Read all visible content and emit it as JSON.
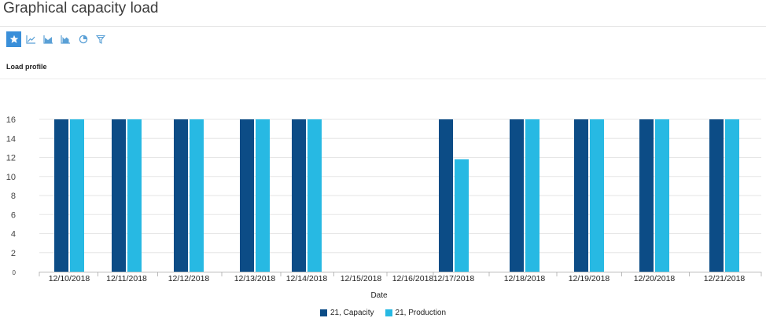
{
  "title": "Graphical capacity load",
  "toolbar": {
    "buttons": [
      {
        "icon": "star-icon",
        "active": true
      },
      {
        "icon": "line-chart-icon",
        "active": false
      },
      {
        "icon": "area-chart-icon",
        "active": false
      },
      {
        "icon": "column-chart-icon",
        "active": false
      },
      {
        "icon": "pie-chart-icon",
        "active": false
      },
      {
        "icon": "funnel-chart-icon",
        "active": false
      }
    ]
  },
  "subtitle": "Load profile",
  "colors": {
    "capacity": "#0c4c86",
    "production": "#27b9e3",
    "grid": "#e6e6e6",
    "axis": "#bbbbbb",
    "accent": "#3a8fd9"
  },
  "chart_data": {
    "type": "bar",
    "xlabel": "Date",
    "ylabel": "",
    "ylim": [
      0,
      16
    ],
    "yticks": [
      0,
      2,
      4,
      6,
      8,
      10,
      12,
      14,
      16
    ],
    "grid": true,
    "legend_position": "bottom-center",
    "categories": [
      "12/10/2018",
      "12/11/2018",
      "12/12/2018",
      "12/13/2018",
      "12/14/2018",
      "12/15/2018",
      "12/16/2018",
      "12/17/2018",
      "12/18/2018",
      "12/19/2018",
      "12/20/2018",
      "12/21/2018"
    ],
    "series": [
      {
        "name": "21, Capacity",
        "values": [
          16,
          16,
          16,
          16,
          16,
          0,
          0,
          16,
          16,
          16,
          16,
          16
        ]
      },
      {
        "name": "21, Production",
        "values": [
          16,
          16,
          16,
          16,
          16,
          0,
          0,
          11.8,
          16,
          16,
          16,
          16
        ]
      }
    ]
  }
}
